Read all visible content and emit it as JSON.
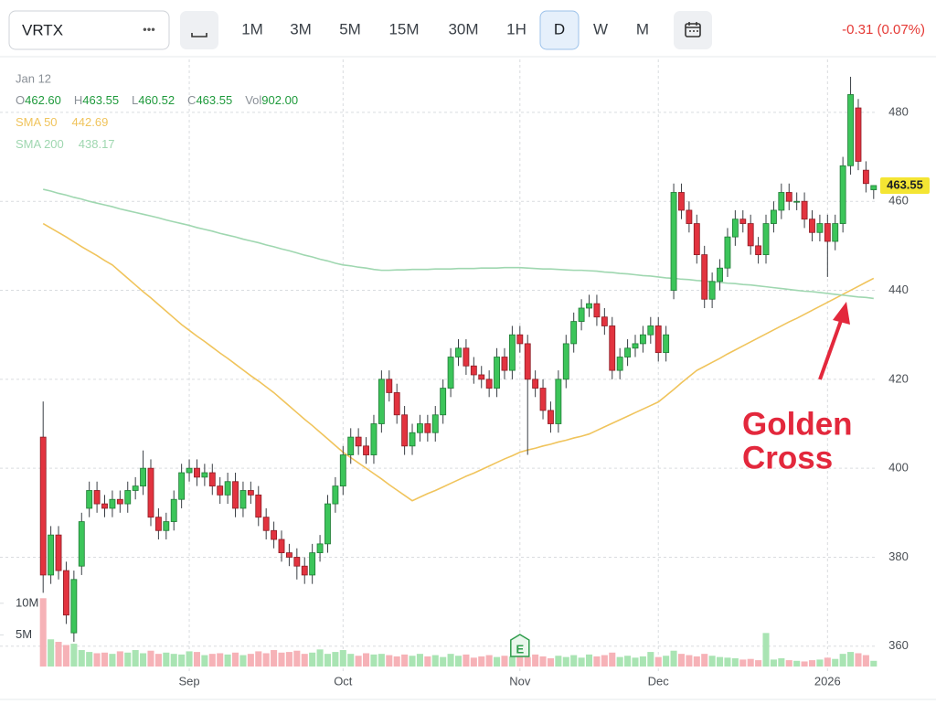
{
  "toolbar": {
    "symbol": "VRTX",
    "more": "•••",
    "intervals": [
      "1M",
      "3M",
      "5M",
      "15M",
      "30M",
      "1H",
      "D",
      "W",
      "M"
    ],
    "selected": "D",
    "change": "-0.31 (0.07%)"
  },
  "header": {
    "date": "Jan 12",
    "fields": [
      {
        "key": "O",
        "value": "462.60"
      },
      {
        "key": "H",
        "value": "463.55"
      },
      {
        "key": "L",
        "value": "460.52"
      },
      {
        "key": "C",
        "value": "463.55"
      },
      {
        "key": "Vol",
        "value": "902.00"
      }
    ]
  },
  "chart_data": {
    "type": "candlestick",
    "categories": [
      null,
      null,
      null,
      null,
      null,
      null,
      null,
      null,
      null,
      null,
      null,
      null,
      null,
      null,
      null,
      null,
      null,
      null,
      null,
      "Sep",
      null,
      null,
      null,
      null,
      null,
      null,
      null,
      null,
      null,
      null,
      null,
      null,
      null,
      null,
      null,
      null,
      null,
      null,
      null,
      "Oct",
      null,
      null,
      null,
      null,
      null,
      null,
      null,
      null,
      null,
      null,
      null,
      null,
      null,
      null,
      null,
      null,
      null,
      null,
      null,
      null,
      null,
      null,
      "Nov",
      null,
      null,
      null,
      null,
      null,
      null,
      null,
      null,
      null,
      null,
      null,
      null,
      null,
      null,
      null,
      null,
      null,
      "Dec",
      null,
      null,
      null,
      null,
      null,
      null,
      null,
      null,
      null,
      null,
      null,
      null,
      null,
      null,
      null,
      null,
      null,
      null,
      null,
      null,
      null,
      "2026",
      null,
      null,
      null,
      null,
      null,
      null
    ],
    "open": [
      407,
      376,
      385,
      377,
      363,
      378,
      391,
      395,
      392,
      391,
      393,
      392,
      395,
      396,
      400,
      389,
      386,
      388,
      393,
      399,
      400,
      398,
      399,
      396,
      394,
      397,
      391,
      395,
      394,
      389,
      386,
      384,
      381,
      380,
      378,
      376,
      381,
      383,
      392,
      396,
      403,
      407,
      405,
      403,
      410,
      420,
      417,
      412,
      405,
      408,
      410,
      408,
      412,
      418,
      425,
      427,
      423,
      421,
      420,
      418,
      425,
      422,
      430,
      428,
      420,
      418,
      413,
      410,
      420,
      428,
      433,
      436,
      437,
      434,
      432,
      422,
      425,
      427,
      428,
      430,
      432,
      426,
      440,
      462,
      458,
      455,
      448,
      438,
      442,
      445,
      452,
      456,
      455,
      450,
      448,
      455,
      458,
      462,
      460,
      460,
      456,
      453,
      455,
      451,
      455,
      468,
      481,
      467,
      462.6
    ],
    "high": [
      415,
      387,
      387,
      379,
      377,
      390,
      397,
      397,
      394,
      395,
      395,
      397,
      398,
      404,
      402,
      391,
      390,
      395,
      401,
      402,
      402,
      401,
      401,
      398,
      399,
      399,
      397,
      397,
      396,
      391,
      388,
      386,
      383,
      382,
      380,
      383,
      385,
      394,
      398,
      405,
      409,
      409,
      407,
      412,
      422,
      422,
      419,
      414,
      410,
      412,
      412,
      414,
      420,
      427,
      429,
      429,
      425,
      423,
      422,
      427,
      427,
      432,
      432,
      430,
      422,
      420,
      415,
      422,
      430,
      435,
      438,
      439,
      439,
      436,
      434,
      427,
      429,
      430,
      432,
      434,
      434,
      432,
      464,
      464,
      460,
      457,
      450,
      444,
      447,
      454,
      458,
      458,
      457,
      452,
      457,
      460,
      464,
      464,
      462,
      462,
      458,
      457,
      457,
      457,
      470,
      488,
      483,
      469,
      463.55
    ],
    "low": [
      372,
      374,
      375,
      365,
      361,
      376,
      389,
      390,
      389,
      389,
      390,
      390,
      393,
      394,
      387,
      384,
      384,
      386,
      391,
      397,
      396,
      396,
      394,
      392,
      392,
      389,
      389,
      392,
      387,
      384,
      382,
      379,
      378,
      375,
      374,
      374,
      379,
      381,
      390,
      394,
      401,
      403,
      401,
      401,
      408,
      415,
      410,
      403,
      403,
      406,
      406,
      406,
      410,
      416,
      423,
      421,
      419,
      418,
      416,
      416,
      420,
      420,
      426,
      403,
      416,
      411,
      408,
      408,
      418,
      426,
      431,
      434,
      432,
      430,
      420,
      420,
      423,
      425,
      426,
      428,
      424,
      424,
      438,
      456,
      453,
      446,
      436,
      436,
      440,
      443,
      450,
      453,
      448,
      446,
      446,
      453,
      456,
      458,
      458,
      454,
      451,
      451,
      443,
      449,
      453,
      466,
      467,
      462,
      460.52
    ],
    "close": [
      376,
      385,
      377,
      367,
      375,
      388,
      395,
      392,
      391,
      393,
      392,
      395,
      396,
      400,
      389,
      386,
      388,
      393,
      399,
      400,
      398,
      399,
      396,
      394,
      397,
      391,
      395,
      394,
      389,
      386,
      384,
      381,
      380,
      378,
      376,
      381,
      383,
      392,
      396,
      403,
      407,
      405,
      403,
      410,
      420,
      417,
      412,
      405,
      408,
      410,
      408,
      412,
      418,
      425,
      427,
      423,
      421,
      420,
      418,
      425,
      422,
      430,
      428,
      420,
      418,
      413,
      410,
      420,
      428,
      433,
      436,
      437,
      434,
      432,
      422,
      425,
      427,
      428,
      430,
      432,
      426,
      430,
      462,
      458,
      455,
      448,
      438,
      442,
      445,
      452,
      456,
      455,
      450,
      448,
      455,
      458,
      462,
      460,
      460,
      456,
      453,
      455,
      451,
      455,
      468,
      484,
      469,
      464,
      463.55
    ],
    "volume": [
      10.8,
      4.3,
      3.9,
      3.4,
      3.6,
      2.6,
      2.3,
      2.1,
      2.2,
      2.0,
      2.4,
      2.2,
      2.6,
      2.1,
      2.5,
      2.0,
      2.2,
      2.0,
      1.9,
      2.4,
      2.3,
      1.8,
      2.0,
      2.1,
      1.9,
      2.2,
      1.8,
      2.0,
      2.4,
      2.1,
      2.6,
      2.2,
      2.3,
      2.5,
      2.0,
      2.2,
      2.7,
      2.0,
      2.3,
      2.6,
      2.0,
      1.7,
      2.1,
      1.9,
      2.0,
      1.8,
      1.6,
      1.9,
      1.7,
      2.0,
      1.6,
      1.8,
      1.5,
      2.0,
      1.7,
      1.9,
      1.4,
      1.6,
      1.8,
      1.5,
      1.7,
      1.6,
      2.1,
      1.5,
      1.9,
      1.6,
      1.3,
      1.7,
      1.5,
      1.8,
      1.4,
      1.9,
      1.6,
      1.8,
      2.2,
      1.5,
      1.7,
      1.4,
      1.6,
      2.3,
      1.5,
      1.7,
      2.5,
      2.0,
      1.8,
      1.6,
      2.0,
      1.7,
      1.5,
      1.4,
      1.3,
      1.1,
      1.2,
      1.0,
      5.3,
      1.1,
      1.3,
      1.0,
      0.9,
      0.8,
      1.0,
      1.1,
      1.4,
      1.2,
      2.0,
      2.3,
      2.1,
      1.8,
      0.9
    ],
    "up_color": "#3cc55a",
    "down_color": "#e2333f",
    "volume_up_color": "#a9e4b3",
    "volume_down_color": "#f6b2b7",
    "ylim": [
      354.2,
      491.9
    ],
    "yticks": [
      360,
      380,
      400,
      420,
      440,
      460,
      480
    ],
    "grid": true,
    "volume_ylim": [
      0,
      12
    ],
    "volume_ticks": [
      {
        "value": 5,
        "label": "5M"
      },
      {
        "value": 10,
        "label": "10M"
      }
    ],
    "series": [
      {
        "name": "SMA 50",
        "color": "#f0c45c",
        "values": [
          455,
          454,
          453,
          452,
          450.9,
          449.8,
          448.8,
          447.8,
          446.7,
          445.7,
          444.2,
          442.7,
          441.2,
          439.7,
          438.3,
          436.8,
          435.3,
          433.8,
          432.3,
          431,
          429.7,
          428.5,
          427.2,
          425.9,
          424.7,
          423.4,
          422.1,
          420.8,
          419.6,
          418.3,
          417,
          415.5,
          414,
          412.5,
          411,
          409.6,
          408.1,
          406.6,
          405.1,
          403.6,
          402.4,
          401.2,
          400,
          398.8,
          397.6,
          396.3,
          395.1,
          393.9,
          392.7,
          393.5,
          394.3,
          395,
          395.8,
          396.6,
          397.4,
          398.2,
          398.9,
          399.7,
          400.5,
          401.3,
          402.1,
          402.8,
          403.6,
          404.1,
          404.5,
          405,
          405.4,
          405.9,
          406.3,
          406.8,
          407.2,
          407.7,
          408.5,
          409.3,
          410.1,
          410.9,
          411.7,
          412.5,
          413.3,
          414.1,
          414.9,
          416.3,
          417.7,
          419.2,
          420.6,
          422,
          422.9,
          423.8,
          424.7,
          425.7,
          426.6,
          427.5,
          428.4,
          429.3,
          430.2,
          431.1,
          432,
          432.9,
          433.7,
          434.6,
          435.5,
          436.4,
          437.3,
          438.2,
          439.1,
          440,
          440.9,
          441.8,
          442.69
        ]
      },
      {
        "name": "SMA 200",
        "color": "#9fd7b0",
        "values": [
          462.7,
          462.3,
          461.8,
          461.4,
          460.9,
          460.5,
          460,
          459.6,
          459.2,
          458.8,
          458.3,
          457.9,
          457.5,
          457.1,
          456.7,
          456.3,
          455.8,
          455.4,
          455,
          454.6,
          454.1,
          453.7,
          453.3,
          452.8,
          452.4,
          452,
          451.5,
          451.1,
          450.7,
          450.2,
          449.8,
          449.3,
          448.9,
          448.4,
          447.9,
          447.5,
          447,
          446.6,
          446.1,
          445.7,
          445.5,
          445.2,
          445,
          444.7,
          444.5,
          444.5,
          444.6,
          444.6,
          444.7,
          444.7,
          444.7,
          444.8,
          444.8,
          444.8,
          444.9,
          444.9,
          444.9,
          445,
          445,
          445,
          445.1,
          445.1,
          445.1,
          445,
          444.9,
          444.8,
          444.8,
          444.7,
          444.6,
          444.5,
          444.5,
          444.4,
          444.3,
          444.1,
          444,
          443.8,
          443.7,
          443.5,
          443.3,
          443.2,
          443,
          442.8,
          442.7,
          442.5,
          442.4,
          442.2,
          442.1,
          441.9,
          441.8,
          441.6,
          441.5,
          441.3,
          441.2,
          441,
          440.8,
          440.6,
          440.4,
          440.2,
          440,
          439.8,
          439.7,
          439.5,
          439.3,
          439.1,
          438.9,
          438.7,
          438.5,
          438.4,
          438.17
        ]
      }
    ],
    "event_marker": "E",
    "annotation": {
      "lines": [
        "Golden",
        "Cross"
      ],
      "color": "#e3283c"
    }
  }
}
